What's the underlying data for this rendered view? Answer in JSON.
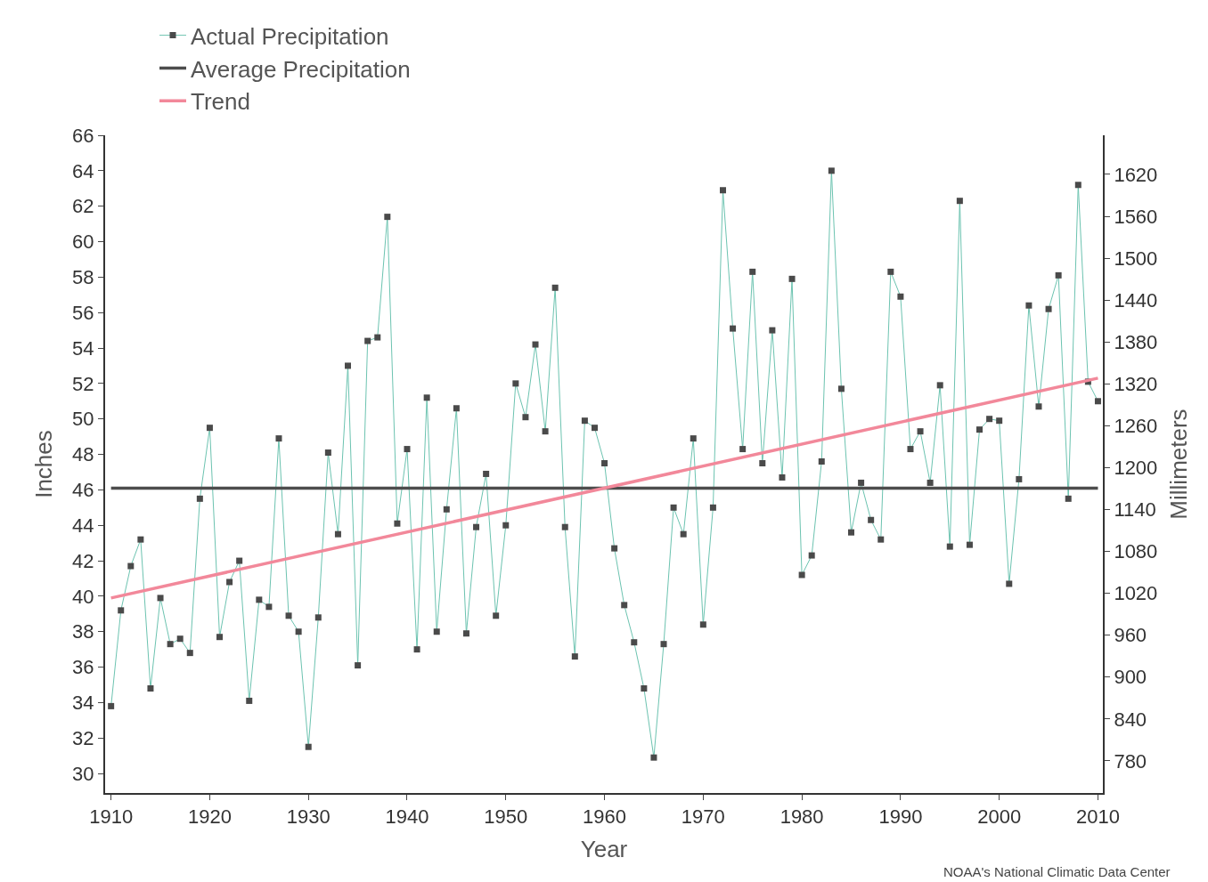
{
  "chart_data": {
    "type": "line",
    "x": [
      1910,
      1911,
      1912,
      1913,
      1914,
      1915,
      1916,
      1917,
      1918,
      1919,
      1920,
      1921,
      1922,
      1923,
      1924,
      1925,
      1926,
      1927,
      1928,
      1929,
      1930,
      1931,
      1932,
      1933,
      1934,
      1935,
      1936,
      1937,
      1938,
      1939,
      1940,
      1941,
      1942,
      1943,
      1944,
      1945,
      1946,
      1947,
      1948,
      1949,
      1950,
      1951,
      1952,
      1953,
      1954,
      1955,
      1956,
      1957,
      1958,
      1959,
      1960,
      1961,
      1962,
      1963,
      1964,
      1965,
      1966,
      1967,
      1968,
      1969,
      1970,
      1971,
      1972,
      1973,
      1974,
      1975,
      1976,
      1977,
      1978,
      1979,
      1980,
      1981,
      1982,
      1983,
      1984,
      1985,
      1986,
      1987,
      1988,
      1989,
      1990,
      1991,
      1992,
      1993,
      1994,
      1995,
      1996,
      1997,
      1998,
      1999,
      2000,
      2001,
      2002,
      2003,
      2004,
      2005,
      2006,
      2007,
      2008,
      2009,
      2010
    ],
    "series": [
      {
        "name": "Actual Precipitation",
        "color": "#6cc3b0",
        "marker": "square",
        "values": [
          33.8,
          39.2,
          41.7,
          43.2,
          34.8,
          39.9,
          37.3,
          37.6,
          36.8,
          45.5,
          49.5,
          37.7,
          40.8,
          42.0,
          34.1,
          39.8,
          39.4,
          48.9,
          38.9,
          38.0,
          31.5,
          38.8,
          48.1,
          43.5,
          53.0,
          36.1,
          54.4,
          54.6,
          61.4,
          44.1,
          48.3,
          37.0,
          51.2,
          38.0,
          44.9,
          50.6,
          37.9,
          43.9,
          46.9,
          38.9,
          44.0,
          52.0,
          50.1,
          54.2,
          49.3,
          57.4,
          43.9,
          36.6,
          49.9,
          49.5,
          47.5,
          42.7,
          39.5,
          37.4,
          34.8,
          30.9,
          37.3,
          45.0,
          43.5,
          48.9,
          38.4,
          45.0,
          62.9,
          55.1,
          48.3,
          58.3,
          47.5,
          55.0,
          46.7,
          57.9,
          41.2,
          42.3,
          47.6,
          64.0,
          51.7,
          43.6,
          46.4,
          44.3,
          43.2,
          58.3,
          56.9,
          48.3,
          49.3,
          46.4,
          51.9,
          42.8,
          62.3,
          42.9,
          49.4,
          50.0,
          49.9,
          40.7,
          46.6,
          56.4,
          50.7,
          56.2,
          58.1,
          45.5,
          63.2,
          52.1,
          51.0
        ]
      },
      {
        "name": "Trend",
        "color": "#f2889a",
        "x": [
          1910,
          2010
        ],
        "values": [
          39.9,
          52.3
        ]
      }
    ],
    "xlabel": "Year",
    "ylabel": "Inches",
    "y2label": "Millimeters",
    "xlim": [
      1909.4,
      2010.5
    ],
    "xticks": [
      1910,
      1920,
      1930,
      1940,
      1950,
      1960,
      1970,
      1980,
      1990,
      2000,
      2010
    ],
    "ylim": [
      28.9,
      66
    ],
    "yticks": [
      30,
      32,
      34,
      36,
      38,
      40,
      42,
      44,
      46,
      48,
      50,
      52,
      54,
      56,
      58,
      60,
      62,
      64,
      66
    ],
    "y2lim": [
      734,
      1676
    ],
    "y2ticks": [
      780,
      840,
      900,
      960,
      1020,
      1080,
      1140,
      1200,
      1260,
      1320,
      1380,
      1440,
      1500,
      1560,
      1620
    ],
    "annotations": [
      "NOAA's National Climatic Data Center"
    ],
    "ref_lines": [
      {
        "axis": "y",
        "value": 46.1,
        "label": "Average Precipitation",
        "color": "#4d4d4d"
      }
    ],
    "legend": "top left",
    "grid": false
  }
}
